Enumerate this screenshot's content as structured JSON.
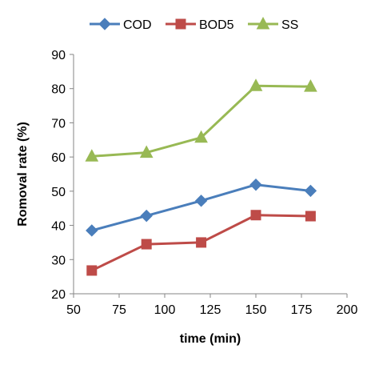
{
  "chart_data": {
    "type": "line",
    "xlabel": "time (min)",
    "ylabel": "Romoval rate (%)",
    "xlim": [
      50,
      200
    ],
    "ylim": [
      20,
      90
    ],
    "x_ticks": [
      "50",
      "75",
      "100",
      "125",
      "150",
      "175",
      "200"
    ],
    "y_ticks": [
      "20",
      "30",
      "40",
      "50",
      "60",
      "70",
      "80",
      "90"
    ],
    "grid": false,
    "legend_position": "top",
    "x": [
      60,
      90,
      120,
      150,
      180
    ],
    "series": [
      {
        "name": "COD",
        "color": "#4a7ebb",
        "marker": "diamond",
        "values": [
          38.5,
          42.8,
          47.2,
          51.9,
          50.1
        ]
      },
      {
        "name": "BOD5",
        "color": "#be4b48",
        "marker": "square",
        "values": [
          26.8,
          34.5,
          35.0,
          43.0,
          42.7
        ]
      },
      {
        "name": "SS",
        "color": "#98b954",
        "marker": "triangle",
        "values": [
          60.2,
          61.3,
          65.7,
          80.8,
          80.6
        ]
      }
    ]
  }
}
